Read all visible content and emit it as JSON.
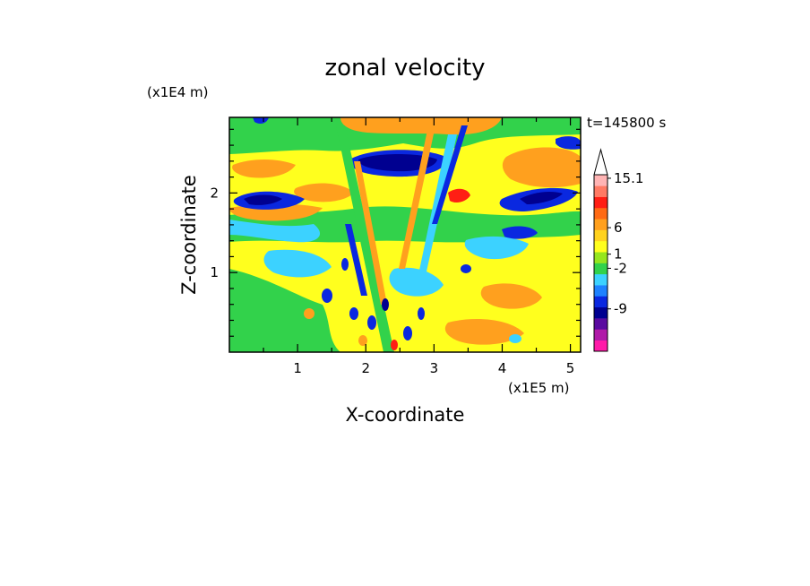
{
  "chart_data": {
    "type": "heatmap",
    "title": "zonal velocity",
    "xlabel": "X-coordinate",
    "ylabel": "Z-coordinate",
    "x_scale_label": "(x1E5 m)",
    "y_scale_label": "(x1E4 m)",
    "time_label": "t=145800 s",
    "xlim": [
      0,
      5.15
    ],
    "ylim": [
      0,
      2.95
    ],
    "xticks": [
      1,
      2,
      3,
      4,
      5
    ],
    "yticks": [
      1,
      2
    ],
    "colorbar": {
      "labeled_levels": [
        "15.1",
        "6",
        "1",
        "-2",
        "-9"
      ],
      "bands": [
        {
          "color": "#ff1aa8"
        },
        {
          "color": "#b01aa8"
        },
        {
          "color": "#5a0aa0"
        },
        {
          "color": "#000090"
        },
        {
          "color": "#0a28e0"
        },
        {
          "color": "#1e82ff"
        },
        {
          "color": "#3cd2ff"
        },
        {
          "color": "#32d24b"
        },
        {
          "color": "#96e61e"
        },
        {
          "color": "#ffff1e"
        },
        {
          "color": "#ffd21e"
        },
        {
          "color": "#ffa01e"
        },
        {
          "color": "#ff6a14"
        },
        {
          "color": "#ff1e14"
        },
        {
          "color": "#ff7a64"
        },
        {
          "color": "#ffb4b4"
        }
      ],
      "max_extension_color": "#ffffff"
    },
    "field_features": [
      {
        "region": "upper jet core",
        "x": 2.3,
        "z": 2.45,
        "level": "-9"
      },
      {
        "region": "left jet core",
        "x": 0.4,
        "z": 2.0,
        "level": "-9"
      },
      {
        "region": "right jet core",
        "x": 4.4,
        "z": 1.95,
        "level": "-9"
      },
      {
        "region": "upper right maximum",
        "x": 4.75,
        "z": 2.35,
        "level": "6"
      },
      {
        "region": "near-surface background",
        "x": 0.3,
        "z": 0.4,
        "level": "-2"
      }
    ]
  }
}
